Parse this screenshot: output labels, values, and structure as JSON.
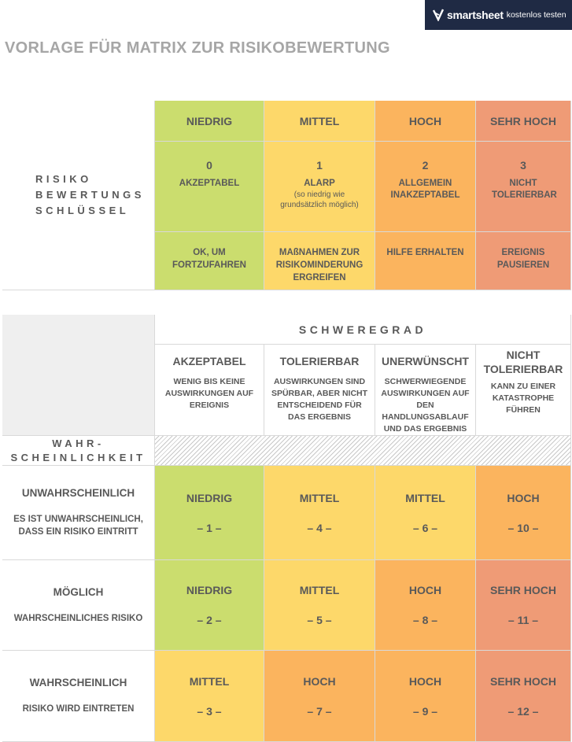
{
  "banner": {
    "brand": "smartsheet",
    "cta": "kostenlos testen"
  },
  "title": "VORLAGE FÜR MATRIX ZUR RISIKOBEWERTUNG",
  "key": {
    "label_lines": [
      "RISIKO",
      "BEWERTUNGS",
      "SCHLÜSSEL"
    ],
    "levels": [
      {
        "name": "NIEDRIG",
        "value": "0",
        "label": "AKZEPTABEL",
        "note": "",
        "action": "OK, UM FORTZUFAHREN",
        "color": "#cbdd6e"
      },
      {
        "name": "MITTEL",
        "value": "1",
        "label": "ALARP",
        "note": "(so niedrig wie grundsätzlich möglich)",
        "action": "MAßNAHMEN ZUR RISIKOMINDERUNG ERGREIFEN",
        "color": "#fdd86a"
      },
      {
        "name": "HOCH",
        "value": "2",
        "label": "ALLGEMEIN INAKZEPTABEL",
        "note": "",
        "action": "HILFE ERHALTEN",
        "color": "#fbb45e"
      },
      {
        "name": "SEHR HOCH",
        "value": "3",
        "label": "NICHT TOLERIERBAR",
        "note": "",
        "action": "EREIGNIS PAUSIEREN",
        "color": "#ef9b76"
      }
    ]
  },
  "matrix": {
    "severity_label": "SCHWEREGRAD",
    "likelihood_label_lines": [
      "WAHR-",
      "SCHEINLICHKEIT"
    ],
    "severity": [
      {
        "title": "AKZEPTABEL",
        "desc": "WENIG BIS KEINE AUSWIRKUNGEN AUF EREIGNIS"
      },
      {
        "title": "TOLERIERBAR",
        "desc": "AUSWIRKUNGEN SIND SPÜRBAR, ABER NICHT ENTSCHEIDEND FÜR DAS ERGEBNIS"
      },
      {
        "title": "UNERWÜNSCHT",
        "desc": "SCHWERWIEGENDE AUSWIRKUNGEN AUF DEN HANDLUNGSABLAUF UND DAS ERGEBNIS"
      },
      {
        "title": "NICHT TOLERIERBAR",
        "desc": "KANN ZU EINER KATASTROPHE FÜHREN"
      }
    ],
    "rows": [
      {
        "title": "UNWAHRSCHEINLICH",
        "desc": "ES IST UNWAHRSCHEINLICH, DASS EIN RISIKO EINTRITT",
        "cells": [
          {
            "level": "NIEDRIG",
            "score": "– 1 –",
            "color": "#cbdd6e"
          },
          {
            "level": "MITTEL",
            "score": "– 4 –",
            "color": "#fdd86a"
          },
          {
            "level": "MITTEL",
            "score": "– 6 –",
            "color": "#fdd86a"
          },
          {
            "level": "HOCH",
            "score": "– 10 –",
            "color": "#fbb45e"
          }
        ]
      },
      {
        "title": "MÖGLICH",
        "desc": "WAHRSCHEINLICHES RISIKO",
        "cells": [
          {
            "level": "NIEDRIG",
            "score": "– 2 –",
            "color": "#cbdd6e"
          },
          {
            "level": "MITTEL",
            "score": "– 5 –",
            "color": "#fdd86a"
          },
          {
            "level": "HOCH",
            "score": "– 8 –",
            "color": "#fbb45e"
          },
          {
            "level": "SEHR HOCH",
            "score": "– 11 –",
            "color": "#ef9b76"
          }
        ]
      },
      {
        "title": "WAHRSCHEINLICH",
        "desc": "RISIKO WIRD EINTRETEN",
        "cells": [
          {
            "level": "MITTEL",
            "score": "– 3 –",
            "color": "#fdd86a"
          },
          {
            "level": "HOCH",
            "score": "– 7 –",
            "color": "#fbb45e"
          },
          {
            "level": "HOCH",
            "score": "– 9 –",
            "color": "#fbb45e"
          },
          {
            "level": "SEHR HOCH",
            "score": "– 12 –",
            "color": "#ef9b76"
          }
        ]
      }
    ]
  }
}
